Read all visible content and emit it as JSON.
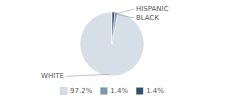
{
  "chart_data": {
    "type": "pie",
    "categories": [
      "WHITE",
      "HISPANIC",
      "BLACK"
    ],
    "values": [
      97.2,
      1.4,
      1.4
    ],
    "value_labels": [
      "97.2%",
      "1.4%",
      "1.4%"
    ],
    "colors": [
      "#d6dfe8",
      "#7898ae",
      "#2e5066"
    ],
    "legend": "bottom"
  }
}
